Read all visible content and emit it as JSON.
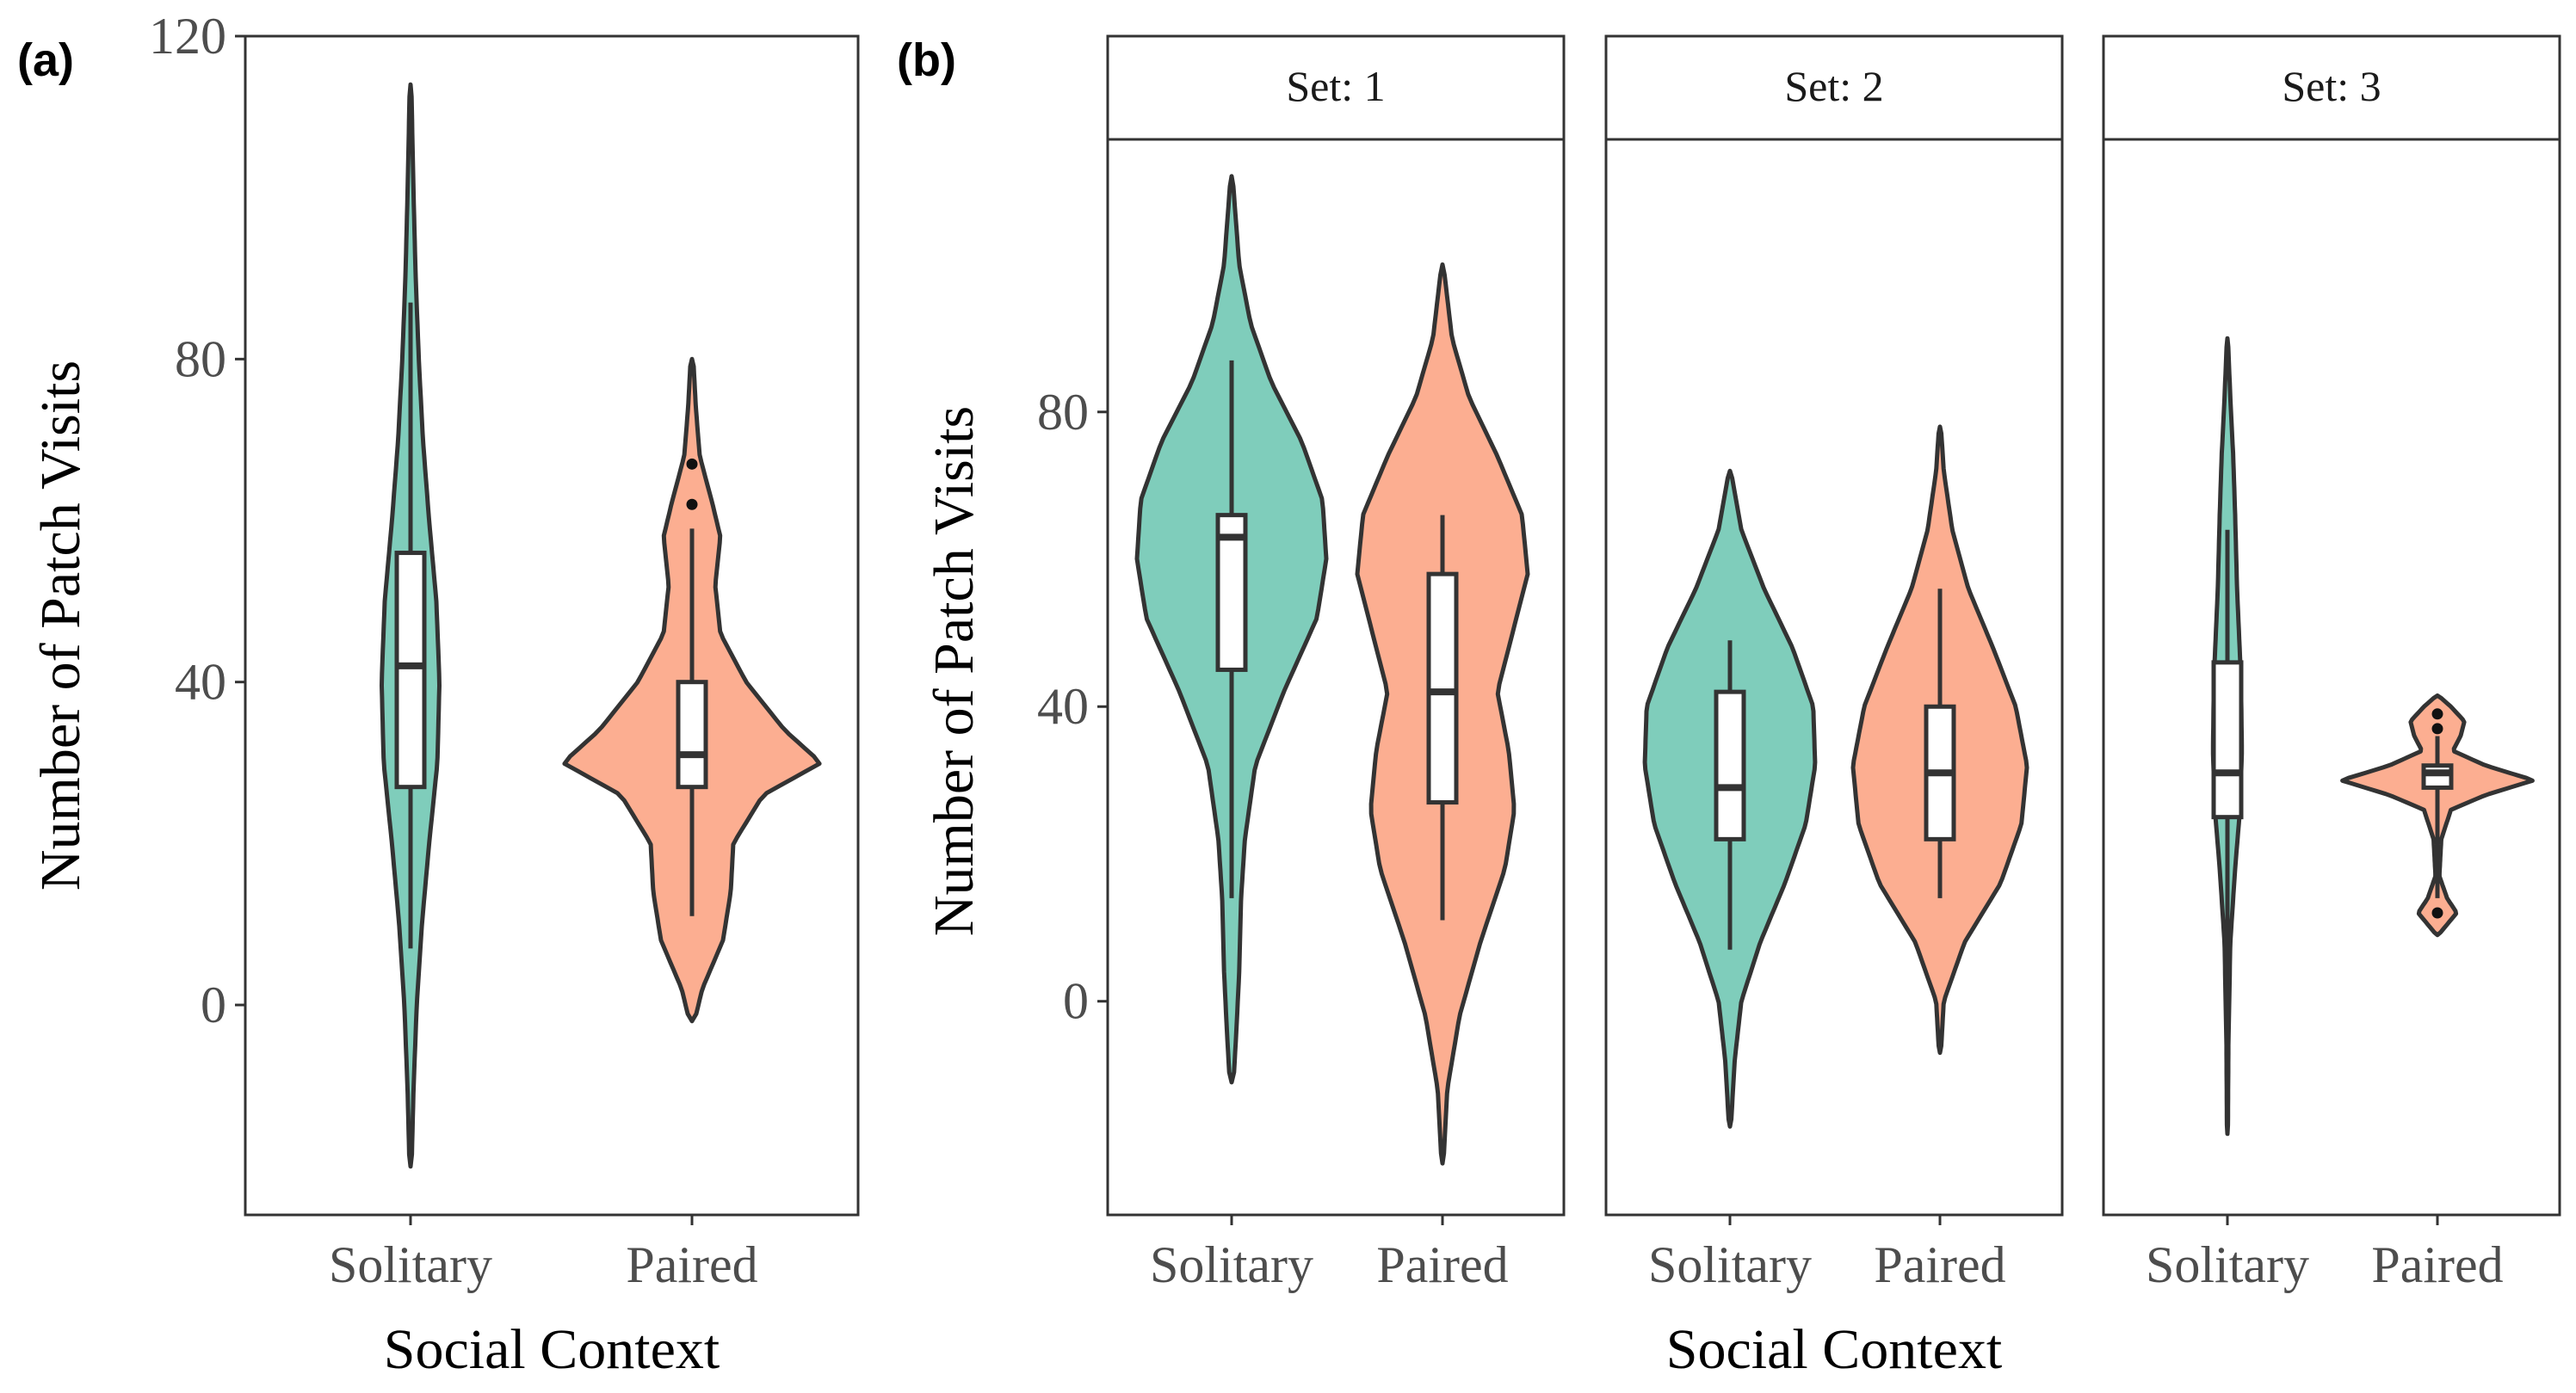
{
  "colors": {
    "solitary": "#7fcdbb",
    "paired": "#fcae91",
    "outline": "#333333",
    "box_fill": "#ffffff",
    "strip_fill": "#ffffff",
    "tick_text": "#4d4d4d"
  },
  "chart_data": [
    {
      "panel_label": "(a)",
      "type": "violin",
      "title": "",
      "xlabel": "Social Context",
      "ylabel": "Number of Patch Visits",
      "categories": [
        "Solitary",
        "Paired"
      ],
      "ylim": [
        -26,
        120
      ],
      "yticks": [
        0,
        40,
        80,
        120
      ],
      "ytick_labels": [
        "0",
        "40",
        "80",
        "120"
      ],
      "show_yticks": true,
      "grid": false,
      "groups": [
        {
          "name": "Solitary",
          "box": {
            "q1": 27,
            "median": 42,
            "q3": 56,
            "whisker_low": 7,
            "whisker_high": 87,
            "outliers": []
          },
          "density": [
            [
              -20,
              0.02
            ],
            [
              -10,
              0.06
            ],
            [
              0,
              0.12
            ],
            [
              10,
              0.22
            ],
            [
              20,
              0.36
            ],
            [
              30,
              0.52
            ],
            [
              40,
              0.56
            ],
            [
              50,
              0.5
            ],
            [
              60,
              0.36
            ],
            [
              70,
              0.24
            ],
            [
              80,
              0.16
            ],
            [
              90,
              0.1
            ],
            [
              100,
              0.06
            ],
            [
              114,
              0.015
            ]
          ]
        },
        {
          "name": "Paired",
          "box": {
            "q1": 27,
            "median": 31,
            "q3": 40,
            "whisker_low": 11,
            "whisker_high": 59,
            "outliers": [
              62,
              67
            ]
          },
          "density": [
            [
              -2,
              0.02
            ],
            [
              2,
              0.08
            ],
            [
              8,
              0.24
            ],
            [
              14,
              0.3
            ],
            [
              20,
              0.32
            ],
            [
              26,
              0.55
            ],
            [
              30,
              1.0
            ],
            [
              34,
              0.72
            ],
            [
              40,
              0.42
            ],
            [
              46,
              0.22
            ],
            [
              52,
              0.18
            ],
            [
              58,
              0.22
            ],
            [
              62,
              0.16
            ],
            [
              68,
              0.06
            ],
            [
              74,
              0.03
            ],
            [
              80,
              0.01
            ]
          ]
        }
      ]
    },
    {
      "panel_label": "(b)",
      "type": "violin",
      "title": "",
      "xlabel": "Social Context",
      "ylabel": "Number of Patch Visits",
      "categories": [
        "Solitary",
        "Paired"
      ],
      "ylim": [
        -29,
        117
      ],
      "yticks": [
        0,
        40,
        80
      ],
      "ytick_labels": [
        "0",
        "40",
        "80"
      ],
      "grid": false,
      "facets": [
        {
          "strip": "Set: 1",
          "show_yticks": true,
          "groups": [
            {
              "name": "Solitary",
              "box": {
                "q1": 45,
                "median": 63,
                "q3": 66,
                "whisker_low": 14,
                "whisker_high": 87,
                "outliers": []
              },
              "density": [
                [
                  -11,
                  0.02
                ],
                [
                  -4,
                  0.05
                ],
                [
                  4,
                  0.08
                ],
                [
                  14,
                  0.1
                ],
                [
                  22,
                  0.14
                ],
                [
                  32,
                  0.25
                ],
                [
                  42,
                  0.55
                ],
                [
                  52,
                  0.9
                ],
                [
                  60,
                  1.0
                ],
                [
                  68,
                  0.96
                ],
                [
                  76,
                  0.74
                ],
                [
                  84,
                  0.42
                ],
                [
                  92,
                  0.2
                ],
                [
                  100,
                  0.08
                ],
                [
                  112,
                  0.01
                ]
              ]
            },
            {
              "name": "Paired",
              "box": {
                "q1": 27,
                "median": 42,
                "q3": 58,
                "whisker_low": 11,
                "whisker_high": 66,
                "outliers": []
              },
              "density": [
                [
                  -22,
                  0.01
                ],
                [
                  -12,
                  0.05
                ],
                [
                  -2,
                  0.18
                ],
                [
                  8,
                  0.4
                ],
                [
                  18,
                  0.66
                ],
                [
                  26,
                  0.76
                ],
                [
                  34,
                  0.7
                ],
                [
                  42,
                  0.58
                ],
                [
                  50,
                  0.74
                ],
                [
                  58,
                  0.9
                ],
                [
                  66,
                  0.84
                ],
                [
                  74,
                  0.58
                ],
                [
                  82,
                  0.28
                ],
                [
                  90,
                  0.1
                ],
                [
                  100,
                  0.01
                ]
              ]
            }
          ]
        },
        {
          "strip": "Set: 2",
          "show_yticks": false,
          "groups": [
            {
              "name": "Solitary",
              "box": {
                "q1": 22,
                "median": 29,
                "q3": 42,
                "whisker_low": 7,
                "whisker_high": 49,
                "outliers": []
              },
              "density": [
                [
                  -17,
                  0.01
                ],
                [
                  -8,
                  0.05
                ],
                [
                  0,
                  0.12
                ],
                [
                  8,
                  0.32
                ],
                [
                  16,
                  0.58
                ],
                [
                  24,
                  0.8
                ],
                [
                  32,
                  0.9
                ],
                [
                  40,
                  0.88
                ],
                [
                  48,
                  0.66
                ],
                [
                  56,
                  0.36
                ],
                [
                  64,
                  0.12
                ],
                [
                  72,
                  0.01
                ]
              ]
            },
            {
              "name": "Paired",
              "box": {
                "q1": 22,
                "median": 31,
                "q3": 40,
                "whisker_low": 14,
                "whisker_high": 56,
                "outliers": []
              },
              "density": [
                [
                  -7,
                  0.01
                ],
                [
                  0,
                  0.04
                ],
                [
                  8,
                  0.26
                ],
                [
                  16,
                  0.64
                ],
                [
                  24,
                  0.86
                ],
                [
                  32,
                  0.92
                ],
                [
                  40,
                  0.8
                ],
                [
                  48,
                  0.56
                ],
                [
                  56,
                  0.3
                ],
                [
                  64,
                  0.13
                ],
                [
                  72,
                  0.04
                ],
                [
                  78,
                  0.01
                ]
              ]
            }
          ]
        },
        {
          "strip": "Set: 3",
          "show_yticks": false,
          "groups": [
            {
              "name": "Solitary",
              "box": {
                "q1": 25,
                "median": 31,
                "q3": 46,
                "whisker_low": -18,
                "whisker_high": 64,
                "outliers": []
              },
              "density": [
                [
                  -18,
                  0.005
                ],
                [
                  -6,
                  0.01
                ],
                [
                  8,
                  0.03
                ],
                [
                  18,
                  0.08
                ],
                [
                  26,
                  0.13
                ],
                [
                  34,
                  0.15
                ],
                [
                  44,
                  0.14
                ],
                [
                  56,
                  0.1
                ],
                [
                  66,
                  0.08
                ],
                [
                  74,
                  0.06
                ],
                [
                  82,
                  0.03
                ],
                [
                  90,
                  0.005
                ]
              ]
            },
            {
              "name": "Paired",
              "box": {
                "q1": 29,
                "median": 31,
                "q3": 32,
                "whisker_low": 14,
                "whisker_high": 36,
                "outliers": [
                  12,
                  37,
                  39
                ]
              },
              "density": [
                [
                  9,
                  0.01
                ],
                [
                  12,
                  0.2
                ],
                [
                  14,
                  0.1
                ],
                [
                  17,
                  0.02
                ],
                [
                  22,
                  0.04
                ],
                [
                  26,
                  0.14
                ],
                [
                  28,
                  0.5
                ],
                [
                  30,
                  1.0
                ],
                [
                  32,
                  0.5
                ],
                [
                  34,
                  0.16
                ],
                [
                  36,
                  0.24
                ],
                [
                  38,
                  0.28
                ],
                [
                  40,
                  0.14
                ],
                [
                  41.5,
                  0.01
                ]
              ]
            }
          ]
        }
      ]
    }
  ]
}
